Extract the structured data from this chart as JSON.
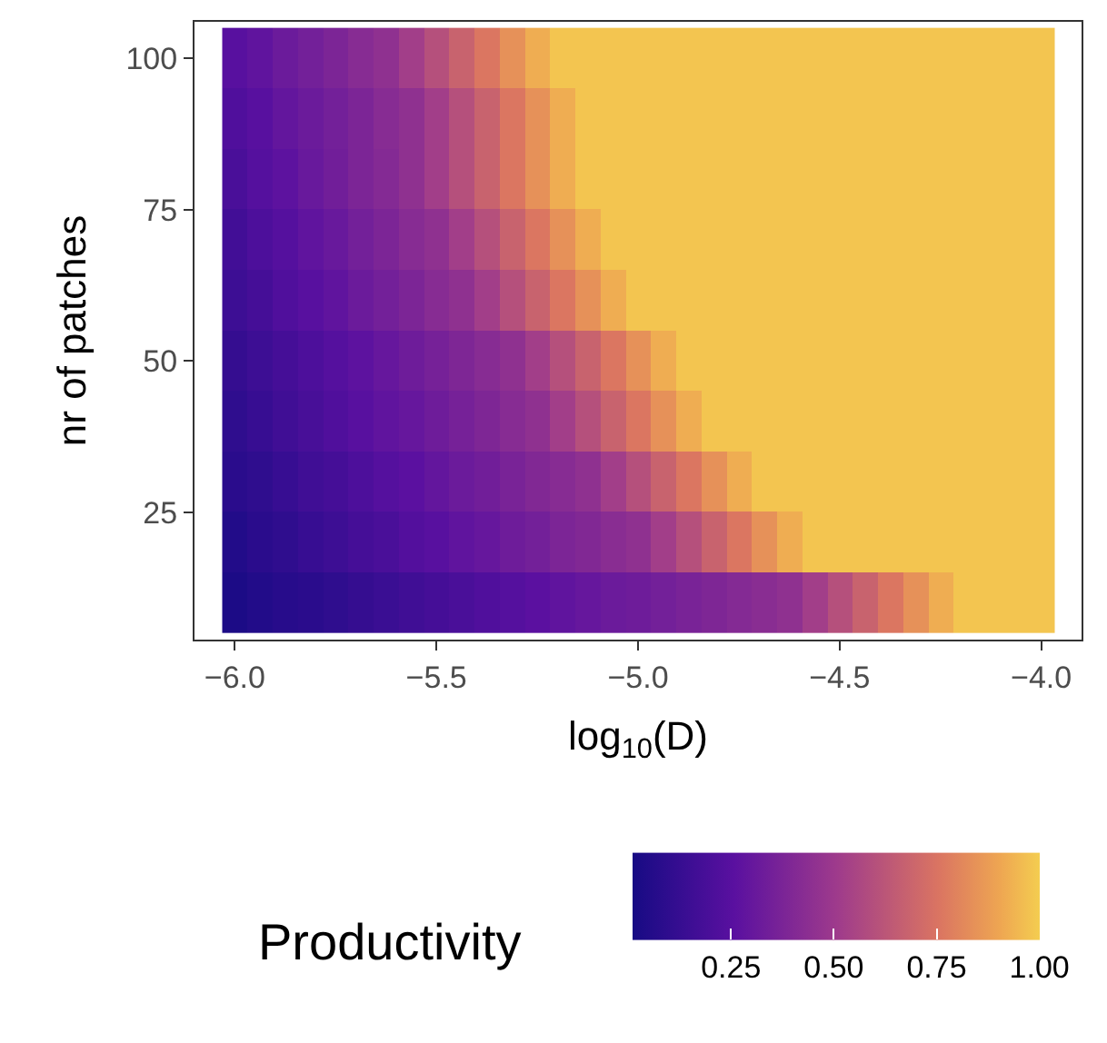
{
  "chart_data": {
    "type": "heatmap",
    "xlabel": "log$_{10}$(D)",
    "ylabel": "nr of patches",
    "clabel": "Productivity",
    "x": [
      -6,
      -5.9375,
      -5.875,
      -5.8125,
      -5.75,
      -5.6875,
      -5.625,
      -5.5625,
      -5.5,
      -5.4375,
      -5.375,
      -5.3125,
      -5.25,
      -5.1875,
      -5.125,
      -5.0625,
      -5,
      -4.9375,
      -4.875,
      -4.8125,
      -4.75,
      -4.6875,
      -4.625,
      -4.5625,
      -4.5,
      -4.4375,
      -4.375,
      -4.3125,
      -4.25,
      -4.1875,
      -4.125,
      -4.0625,
      -4
    ],
    "y": [
      100,
      90,
      80,
      70,
      60,
      50,
      40,
      30,
      20,
      10
    ],
    "cells": [
      [
        0.25,
        0.28,
        0.32,
        0.35,
        0.38,
        0.42,
        0.45,
        0.52,
        0.6,
        0.68,
        0.76,
        0.84,
        0.92,
        0.98,
        0.98,
        0.98,
        0.98,
        0.98,
        0.98,
        0.98,
        0.98,
        0.98,
        0.98,
        0.98,
        0.98,
        0.98,
        0.98,
        0.98,
        0.98,
        0.98,
        0.98,
        0.98,
        0.98
      ],
      [
        0.22,
        0.25,
        0.29,
        0.32,
        0.35,
        0.38,
        0.42,
        0.45,
        0.52,
        0.6,
        0.68,
        0.76,
        0.84,
        0.92,
        0.98,
        0.98,
        0.98,
        0.98,
        0.98,
        0.98,
        0.98,
        0.98,
        0.98,
        0.98,
        0.98,
        0.98,
        0.98,
        0.98,
        0.98,
        0.98,
        0.98,
        0.98,
        0.98
      ],
      [
        0.2,
        0.24,
        0.27,
        0.31,
        0.34,
        0.38,
        0.41,
        0.45,
        0.52,
        0.6,
        0.68,
        0.76,
        0.84,
        0.92,
        0.98,
        0.98,
        0.98,
        0.98,
        0.98,
        0.98,
        0.98,
        0.98,
        0.98,
        0.98,
        0.98,
        0.98,
        0.98,
        0.98,
        0.98,
        0.98,
        0.98,
        0.98,
        0.98
      ],
      [
        0.17,
        0.21,
        0.24,
        0.28,
        0.31,
        0.35,
        0.38,
        0.42,
        0.45,
        0.52,
        0.6,
        0.68,
        0.76,
        0.84,
        0.92,
        0.98,
        0.98,
        0.98,
        0.98,
        0.98,
        0.98,
        0.98,
        0.98,
        0.98,
        0.98,
        0.98,
        0.98,
        0.98,
        0.98,
        0.98,
        0.98,
        0.98,
        0.98
      ],
      [
        0.15,
        0.18,
        0.22,
        0.25,
        0.28,
        0.32,
        0.35,
        0.38,
        0.42,
        0.45,
        0.52,
        0.6,
        0.68,
        0.76,
        0.84,
        0.92,
        0.98,
        0.98,
        0.98,
        0.98,
        0.98,
        0.98,
        0.98,
        0.98,
        0.98,
        0.98,
        0.98,
        0.98,
        0.98,
        0.98,
        0.98,
        0.98,
        0.98
      ],
      [
        0.12,
        0.15,
        0.18,
        0.21,
        0.24,
        0.27,
        0.3,
        0.33,
        0.36,
        0.39,
        0.42,
        0.45,
        0.52,
        0.6,
        0.68,
        0.76,
        0.84,
        0.92,
        0.98,
        0.98,
        0.98,
        0.98,
        0.98,
        0.98,
        0.98,
        0.98,
        0.98,
        0.98,
        0.98,
        0.98,
        0.98,
        0.98,
        0.98
      ],
      [
        0.1,
        0.13,
        0.16,
        0.19,
        0.22,
        0.25,
        0.28,
        0.3,
        0.33,
        0.36,
        0.39,
        0.42,
        0.45,
        0.52,
        0.6,
        0.68,
        0.76,
        0.84,
        0.92,
        0.98,
        0.98,
        0.98,
        0.98,
        0.98,
        0.98,
        0.98,
        0.98,
        0.98,
        0.98,
        0.98,
        0.98,
        0.98,
        0.98
      ],
      [
        0.08,
        0.1,
        0.13,
        0.16,
        0.18,
        0.21,
        0.24,
        0.26,
        0.29,
        0.32,
        0.34,
        0.37,
        0.4,
        0.42,
        0.45,
        0.52,
        0.6,
        0.68,
        0.76,
        0.84,
        0.92,
        0.98,
        0.98,
        0.98,
        0.98,
        0.98,
        0.98,
        0.98,
        0.98,
        0.98,
        0.98,
        0.98,
        0.98
      ],
      [
        0.05,
        0.08,
        0.1,
        0.13,
        0.15,
        0.18,
        0.2,
        0.23,
        0.25,
        0.28,
        0.3,
        0.33,
        0.35,
        0.38,
        0.4,
        0.43,
        0.45,
        0.52,
        0.6,
        0.68,
        0.76,
        0.84,
        0.92,
        0.98,
        0.98,
        0.98,
        0.98,
        0.98,
        0.98,
        0.98,
        0.98,
        0.98,
        0.98
      ],
      [
        0.03,
        0.05,
        0.07,
        0.08,
        0.1,
        0.12,
        0.14,
        0.16,
        0.18,
        0.2,
        0.22,
        0.24,
        0.26,
        0.28,
        0.3,
        0.32,
        0.33,
        0.35,
        0.37,
        0.39,
        0.41,
        0.43,
        0.45,
        0.52,
        0.6,
        0.68,
        0.76,
        0.84,
        0.92,
        0.98,
        0.98,
        0.98,
        0.98
      ]
    ],
    "xlim": [
      -6.1,
      -3.9
    ],
    "xticks": [
      {
        "value": -6,
        "label": "−6.0"
      },
      {
        "value": -5.5,
        "label": "−5.5"
      },
      {
        "value": -5,
        "label": "−5.0"
      },
      {
        "value": -4.5,
        "label": "−4.5"
      },
      {
        "value": -4,
        "label": "−4.0"
      }
    ],
    "ylim": [
      4,
      106
    ],
    "yticks": [
      25,
      50,
      75,
      100
    ],
    "clim": [
      0.01,
      1
    ],
    "cticks": [
      {
        "value": 0.25,
        "label": "0.25"
      },
      {
        "value": 0.5,
        "label": "0.50"
      },
      {
        "value": 0.75,
        "label": "0.75"
      },
      {
        "value": 1,
        "label": "1.00"
      }
    ]
  }
}
